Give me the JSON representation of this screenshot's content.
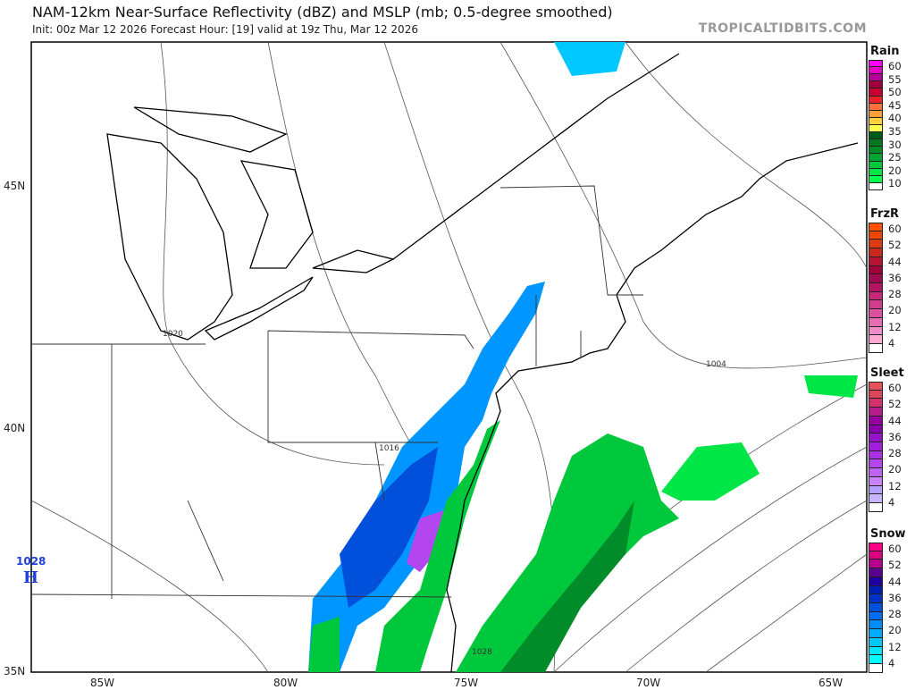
{
  "header": {
    "title": "NAM-12km Near-Surface Reflectivity (dBZ) and MSLP (mb; 0.5-degree smoothed)",
    "subtitle": "Init: 00z Mar 12 2026   Forecast Hour: [19]   valid at 19z Thu, Mar 12 2026",
    "brand": "TROPICALTIDBITS.COM"
  },
  "map": {
    "lat_labels": [
      "45N",
      "40N",
      "35N"
    ],
    "lon_labels": [
      "85W",
      "80W",
      "75W",
      "70W",
      "65W"
    ],
    "isobar_labels": [
      "1020",
      "1016",
      "1004",
      "1028"
    ],
    "high_pressure": {
      "value": "1028",
      "symbol": "H"
    }
  },
  "legends": [
    {
      "title": "Rain",
      "labels": [
        "60",
        "55",
        "50",
        "45",
        "40",
        "35",
        "30",
        "25",
        "20",
        "10"
      ],
      "colors": [
        "#ff00ff",
        "#e600c8",
        "#b40096",
        "#a0003c",
        "#c80032",
        "#f01e28",
        "#ff6e3c",
        "#ffa03c",
        "#ffd23c",
        "#ffff50",
        "#005a19",
        "#00781e",
        "#008c28",
        "#00a532",
        "#00c83c",
        "#00e646",
        "#00ff50",
        "#ffffff"
      ]
    },
    {
      "title": "FrzR",
      "labels": [
        "60",
        "52",
        "44",
        "36",
        "28",
        "20",
        "12",
        "4"
      ],
      "colors": [
        "#ff5000",
        "#f04600",
        "#dc3c14",
        "#c8281e",
        "#b41432",
        "#a0003c",
        "#a00a50",
        "#b41464",
        "#c8287a",
        "#d23c8c",
        "#dc50a0",
        "#e66eb4",
        "#f08cc8",
        "#ffaad2",
        "#ffffff"
      ]
    },
    {
      "title": "Sleet",
      "labels": [
        "60",
        "52",
        "44",
        "36",
        "28",
        "20",
        "12",
        "4"
      ],
      "colors": [
        "#e6505a",
        "#dc465a",
        "#d2326e",
        "#b41e8c",
        "#9600a0",
        "#8c00b4",
        "#9614c8",
        "#a01edc",
        "#aa32e6",
        "#b446f0",
        "#be64f5",
        "#c882fa",
        "#b4a0ff",
        "#c8b4ff",
        "#ffffff"
      ]
    },
    {
      "title": "Snow",
      "labels": [
        "60",
        "52",
        "44",
        "36",
        "28",
        "20",
        "12",
        "4"
      ],
      "colors": [
        "#ff0082",
        "#dc0082",
        "#b4008c",
        "#5a008c",
        "#1e00a0",
        "#001eb4",
        "#0032c8",
        "#0050dc",
        "#006ef0",
        "#008cff",
        "#00aaff",
        "#00c8ff",
        "#00e6ff",
        "#00ffff",
        "#ffffff"
      ]
    }
  ]
}
